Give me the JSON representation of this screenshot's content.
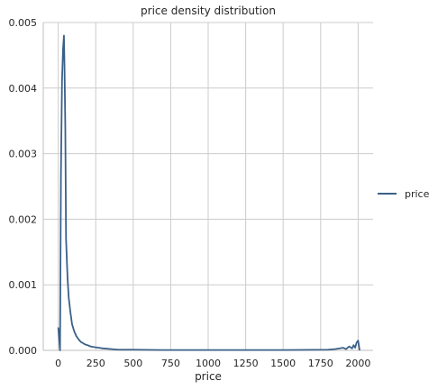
{
  "chart_data": {
    "type": "line",
    "title": "price density distribution",
    "xlabel": "price",
    "ylabel": "",
    "xlim": [
      -100,
      2100
    ],
    "ylim": [
      0,
      0.005
    ],
    "x_ticks": [
      0,
      250,
      500,
      750,
      1000,
      1250,
      1500,
      1750,
      2000
    ],
    "x_tick_labels": [
      "0",
      "250",
      "500",
      "750",
      "1000",
      "1250",
      "1500",
      "1750",
      "2000"
    ],
    "y_ticks": [
      0,
      0.001,
      0.002,
      0.003,
      0.004,
      0.005
    ],
    "y_tick_labels": [
      "0.000",
      "0.001",
      "0.002",
      "0.003",
      "0.004",
      "0.005"
    ],
    "grid": true,
    "legend_position": "right",
    "series": [
      {
        "name": "price",
        "color": "#3b6088",
        "x": [
          0,
          12,
          18,
          25,
          32,
          38,
          42,
          47,
          52,
          57,
          62,
          70,
          80,
          92,
          105,
          120,
          135,
          150,
          165,
          180,
          195,
          215,
          240,
          270,
          300,
          350,
          400,
          500,
          700,
          1000,
          1500,
          1800,
          1850,
          1900,
          1920,
          1940,
          1960,
          1970,
          1980,
          1990,
          2000,
          2010
        ],
        "y": [
          0.00035,
          0.0,
          0.0027,
          0.0041,
          0.0046,
          0.0048,
          0.0043,
          0.0034,
          0.0017,
          0.0014,
          0.0011,
          0.0008,
          0.0006,
          0.0004,
          0.0003,
          0.00022,
          0.00017,
          0.00013,
          0.00011,
          9e-05,
          8e-05,
          6e-05,
          5e-05,
          4e-05,
          3e-05,
          2e-05,
          1e-05,
          1e-05,
          5e-06,
          5e-06,
          5e-06,
          1e-05,
          2e-05,
          4e-05,
          2e-05,
          6e-05,
          3e-05,
          8e-05,
          4e-05,
          0.00012,
          0.00015,
          0.0
        ]
      }
    ]
  }
}
